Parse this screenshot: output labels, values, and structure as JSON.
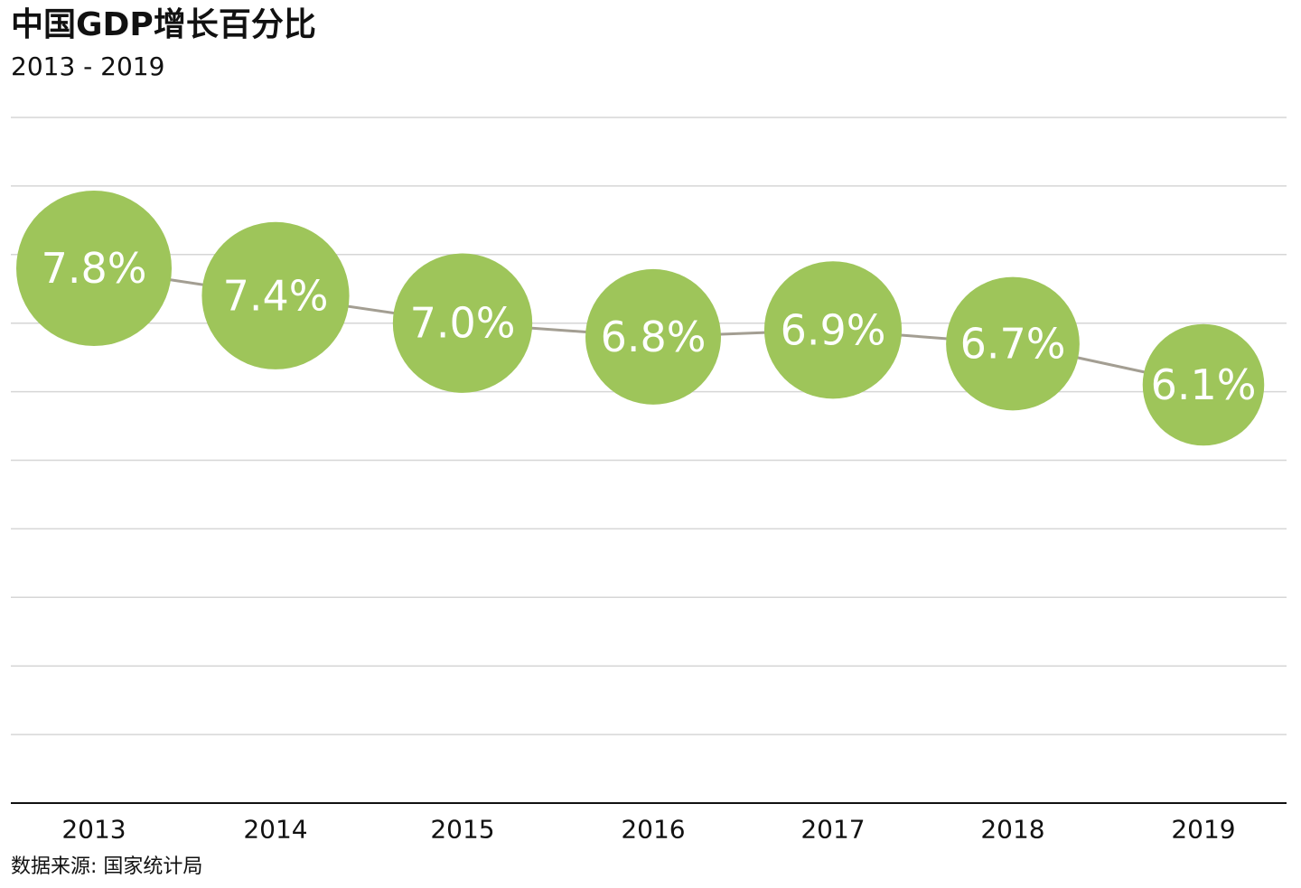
{
  "header": {
    "title": "中国GDP增长百分比",
    "subtitle": "2013 - 2019"
  },
  "footer": {
    "source": "数据来源: 国家统计局"
  },
  "colors": {
    "point_fill": "#9ec55a",
    "line": "#a39e92",
    "grid": "#d6d6d6",
    "axis": "#111111"
  },
  "chart_data": {
    "type": "line",
    "title": "中国GDP增长百分比",
    "subtitle": "2013 - 2019",
    "xlabel": "",
    "ylabel": "",
    "categories": [
      "2013",
      "2014",
      "2015",
      "2016",
      "2017",
      "2018",
      "2019"
    ],
    "series": [
      {
        "values": [
          7.8,
          7.4,
          7.0,
          6.8,
          6.9,
          6.7,
          6.1
        ],
        "data_labels": [
          "7.8%",
          "7.4%",
          "7.0%",
          "6.8%",
          "6.9%",
          "6.7%",
          "6.1%"
        ]
      }
    ],
    "ylim": [
      0,
      10
    ],
    "grid": true,
    "legend": "none"
  }
}
